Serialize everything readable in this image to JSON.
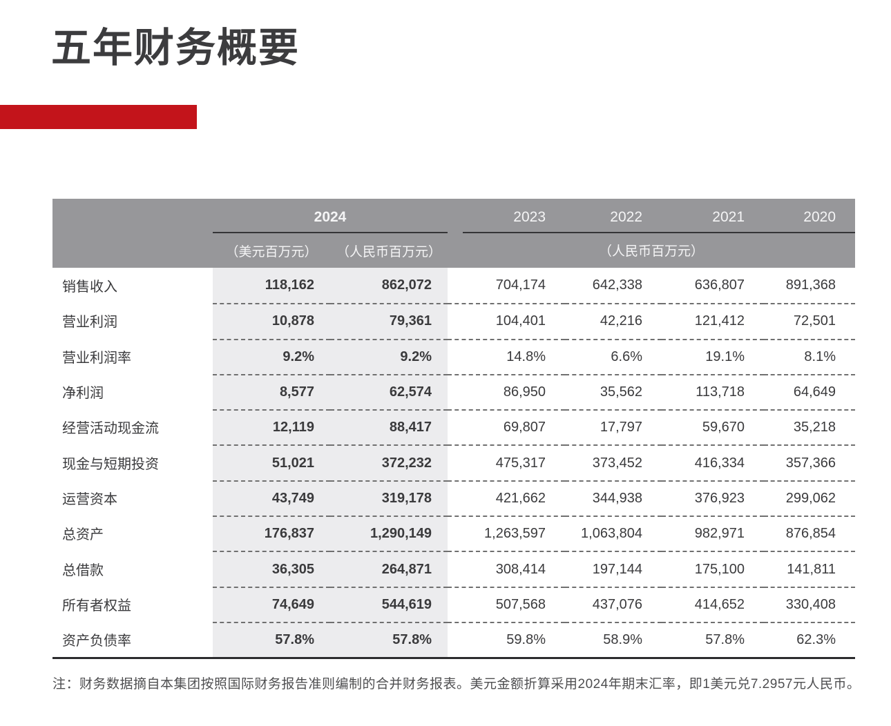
{
  "page": {
    "title": "五年财务概要",
    "footnote": "注：财务数据摘自本集团按照国际财务报告准则编制的合并财务报表。美元金额折算采用2024年期末汇率，即1美元兑7.2957元人民币。"
  },
  "colors": {
    "accent_red": "#c3141b",
    "header_gray": "#97979a",
    "band_gray": "#ececee",
    "text_dark": "#3a3a3c",
    "line_dark": "#2c2c2e"
  },
  "table": {
    "year_groups": {
      "y2024": {
        "label": "2024",
        "units": [
          "（美元百万元）",
          "（人民币百万元）"
        ]
      },
      "prior": {
        "years": [
          "2023",
          "2022",
          "2021",
          "2020"
        ],
        "unit": "（人民币百万元）"
      }
    },
    "rows": [
      {
        "label": "销售收入",
        "usd_2024": "118,162",
        "rmb_2024": "862,072",
        "y2023": "704,174",
        "y2022": "642,338",
        "y2021": "636,807",
        "y2020": "891,368"
      },
      {
        "label": "营业利润",
        "usd_2024": "10,878",
        "rmb_2024": "79,361",
        "y2023": "104,401",
        "y2022": "42,216",
        "y2021": "121,412",
        "y2020": "72,501"
      },
      {
        "label": "营业利润率",
        "usd_2024": "9.2%",
        "rmb_2024": "9.2%",
        "y2023": "14.8%",
        "y2022": "6.6%",
        "y2021": "19.1%",
        "y2020": "8.1%"
      },
      {
        "label": "净利润",
        "usd_2024": "8,577",
        "rmb_2024": "62,574",
        "y2023": "86,950",
        "y2022": "35,562",
        "y2021": "113,718",
        "y2020": "64,649"
      },
      {
        "label": "经营活动现金流",
        "usd_2024": "12,119",
        "rmb_2024": "88,417",
        "y2023": "69,807",
        "y2022": "17,797",
        "y2021": "59,670",
        "y2020": "35,218"
      },
      {
        "label": "现金与短期投资",
        "usd_2024": "51,021",
        "rmb_2024": "372,232",
        "y2023": "475,317",
        "y2022": "373,452",
        "y2021": "416,334",
        "y2020": "357,366"
      },
      {
        "label": "运营资本",
        "usd_2024": "43,749",
        "rmb_2024": "319,178",
        "y2023": "421,662",
        "y2022": "344,938",
        "y2021": "376,923",
        "y2020": "299,062"
      },
      {
        "label": "总资产",
        "usd_2024": "176,837",
        "rmb_2024": "1,290,149",
        "y2023": "1,263,597",
        "y2022": "1,063,804",
        "y2021": "982,971",
        "y2020": "876,854"
      },
      {
        "label": "总借款",
        "usd_2024": "36,305",
        "rmb_2024": "264,871",
        "y2023": "308,414",
        "y2022": "197,144",
        "y2021": "175,100",
        "y2020": "141,811"
      },
      {
        "label": "所有者权益",
        "usd_2024": "74,649",
        "rmb_2024": "544,619",
        "y2023": "507,568",
        "y2022": "437,076",
        "y2021": "414,652",
        "y2020": "330,408"
      },
      {
        "label": "资产负债率",
        "usd_2024": "57.8%",
        "rmb_2024": "57.8%",
        "y2023": "59.8%",
        "y2022": "58.9%",
        "y2021": "57.8%",
        "y2020": "62.3%"
      }
    ]
  }
}
